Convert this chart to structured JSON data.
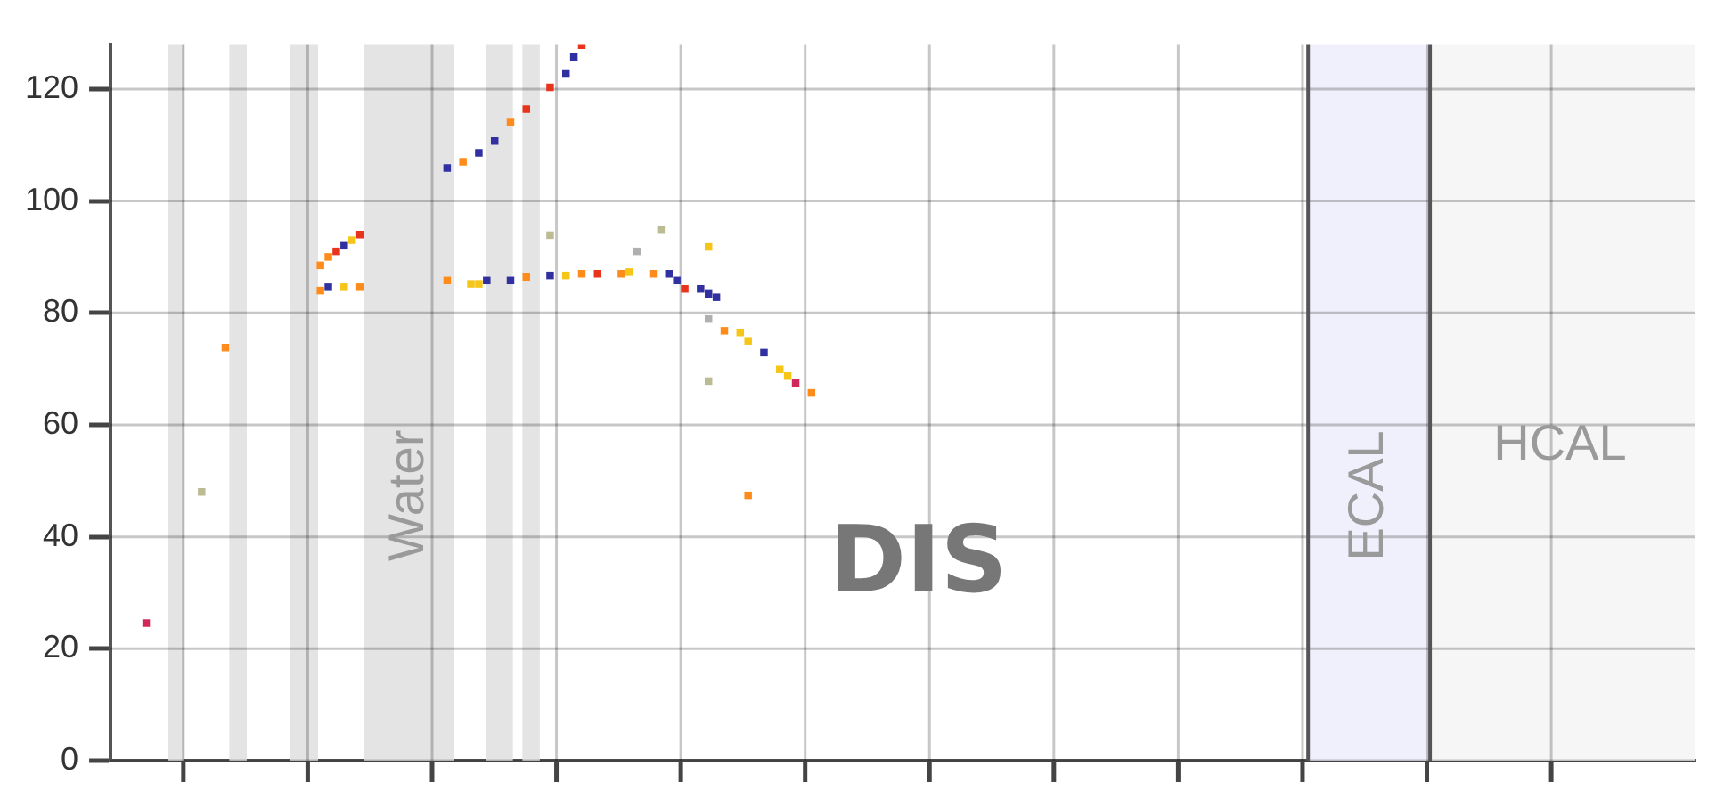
{
  "chart_data": {
    "type": "scatter",
    "ylim": [
      0,
      128
    ],
    "categories": [
      null,
      null,
      null,
      null,
      null,
      null,
      null,
      null,
      null,
      null,
      null,
      null,
      null,
      null,
      null,
      null,
      null,
      null,
      null,
      null,
      null,
      null,
      null,
      null,
      null,
      null,
      null,
      null,
      null,
      null,
      null,
      null,
      null,
      null,
      null,
      null,
      null,
      null,
      null,
      null,
      null,
      null,
      null,
      null,
      null,
      null,
      null,
      null,
      null,
      null,
      null,
      null,
      null,
      null,
      null,
      null,
      null,
      null,
      null,
      null,
      null,
      null,
      null,
      null,
      null,
      null,
      null,
      null,
      null,
      null,
      null,
      null,
      null,
      null,
      null,
      null,
      null,
      null,
      null,
      null,
      null,
      null,
      null,
      null,
      null,
      null,
      null,
      null,
      null,
      null,
      null,
      null,
      null,
      null,
      null,
      null,
      null,
      null,
      null,
      null,
      null,
      null,
      null,
      null,
      null,
      null,
      null,
      null,
      null,
      null,
      null,
      null,
      null,
      null,
      null,
      null,
      null,
      null,
      null,
      null,
      null,
      null,
      null,
      null,
      null,
      null,
      null,
      null,
      null,
      null,
      null,
      null,
      null,
      null,
      null,
      null,
      null,
      null,
      null,
      null,
      null,
      null,
      null,
      null,
      null,
      null,
      null,
      null,
      null,
      null,
      null,
      null,
      null,
      null,
      null,
      null,
      null,
      null,
      null,
      null,
      null,
      null,
      null,
      null,
      null,
      null,
      null,
      null,
      null,
      null,
      null,
      null,
      null,
      null,
      null,
      null,
      null,
      null,
      null,
      null,
      null,
      null,
      null,
      null,
      null,
      null,
      null,
      null,
      null,
      null,
      null,
      null,
      null,
      null,
      null,
      null,
      null,
      null,
      null,
      null
    ],
    "yticks": [
      0,
      20,
      40,
      60,
      80,
      100,
      120
    ],
    "tick_labels": "y",
    "grid": true,
    "marker": "square",
    "series": [
      {
        "color": "#3030a0",
        "values": [
          null,
          null,
          null,
          null,
          null,
          null,
          null,
          null,
          null,
          null,
          null,
          null,
          null,
          null,
          null,
          null,
          null,
          null,
          null,
          null,
          null,
          null,
          null,
          null,
          null,
          null,
          null,
          84.6,
          null,
          92,
          null,
          null,
          null,
          null,
          null,
          null,
          null,
          null,
          null,
          null,
          null,
          null,
          105.9,
          null,
          null,
          null,
          108.6,
          85.8,
          110.7,
          null,
          85.8,
          null,
          null,
          null,
          null,
          86.7,
          null,
          122.7,
          125.7,
          null,
          null,
          null,
          null,
          null,
          null,
          null,
          null,
          null,
          null,
          null,
          87,
          85.8,
          null,
          null,
          84.3,
          83.4,
          82.8,
          null,
          null,
          null,
          null,
          null,
          72.9,
          null,
          null,
          null,
          null,
          null,
          null,
          null,
          null,
          null,
          null,
          null,
          null,
          null,
          null,
          null,
          null,
          null,
          null,
          null,
          null,
          null,
          null,
          null,
          null,
          null,
          null,
          null,
          null,
          null,
          null,
          null,
          null,
          null,
          null,
          null,
          null,
          null,
          null,
          null,
          null,
          null,
          null,
          null,
          null,
          null,
          null,
          null,
          null,
          null,
          null,
          null,
          null,
          null,
          null,
          null,
          null,
          null,
          null,
          null,
          null,
          null,
          null,
          null,
          null,
          null,
          null,
          null,
          null,
          null,
          null,
          null,
          null,
          null,
          null,
          null,
          null,
          null,
          null,
          null,
          null,
          null,
          null,
          null,
          null,
          null,
          null,
          null,
          null,
          null,
          null,
          null,
          null,
          null,
          null,
          null,
          null,
          null,
          null,
          null,
          null,
          null,
          null,
          null,
          null,
          null,
          null,
          null,
          null,
          null,
          null,
          null,
          null,
          null,
          null,
          null,
          null,
          null
        ]
      },
      {
        "color": "#ff8c1a",
        "values": [
          null,
          null,
          null,
          null,
          null,
          null,
          null,
          null,
          null,
          null,
          null,
          null,
          null,
          null,
          73.8,
          null,
          null,
          null,
          null,
          null,
          null,
          null,
          null,
          null,
          null,
          null,
          88.5,
          90,
          null,
          null,
          null,
          84.6,
          null,
          null,
          null,
          null,
          null,
          null,
          null,
          null,
          null,
          null,
          85.8,
          null,
          107,
          null,
          null,
          null,
          null,
          null,
          114,
          null,
          86.4,
          null,
          null,
          null,
          null,
          null,
          null,
          87,
          null,
          null,
          null,
          null,
          87,
          null,
          null,
          null,
          87,
          null,
          null,
          null,
          null,
          null,
          null,
          null,
          null,
          76.8,
          null,
          null,
          47.4,
          null,
          null,
          null,
          null,
          null,
          null,
          null,
          65.7,
          null,
          null,
          null,
          null,
          null,
          null,
          null,
          null,
          null,
          null,
          null,
          null,
          null,
          null,
          null,
          null,
          null,
          null,
          null,
          null,
          null,
          null,
          null,
          null,
          null,
          null,
          null,
          null,
          null,
          null,
          null,
          null,
          null,
          null,
          null,
          null,
          null,
          null,
          null,
          null,
          null,
          null,
          null,
          null,
          null,
          null,
          null,
          null,
          null,
          null,
          null,
          null,
          null,
          null,
          null,
          null,
          null,
          null,
          null,
          null,
          null,
          null,
          null,
          null,
          null,
          null,
          null,
          null,
          null,
          null,
          null,
          null,
          null,
          null,
          null,
          null,
          null,
          null,
          null,
          null,
          null,
          null,
          null,
          null,
          null,
          null,
          null,
          null,
          null,
          null,
          null,
          null,
          null,
          null,
          null,
          null,
          null,
          null,
          null,
          null,
          null,
          null,
          null,
          null,
          null,
          null,
          null,
          null,
          null,
          null,
          null
        ]
      },
      {
        "color": "#ff8c1a",
        "values": [
          null,
          null,
          null,
          null,
          null,
          null,
          null,
          null,
          null,
          null,
          null,
          null,
          null,
          null,
          null,
          null,
          null,
          null,
          null,
          null,
          null,
          null,
          null,
          null,
          null,
          null,
          84,
          null,
          null,
          null,
          null,
          null,
          null,
          null,
          null,
          null,
          null,
          null,
          null,
          null,
          null,
          null,
          null,
          null,
          null,
          null,
          null,
          null,
          null,
          null,
          null,
          null,
          null,
          null,
          null,
          null,
          null,
          null,
          null,
          null,
          null,
          null,
          null,
          null,
          null,
          null,
          null,
          null,
          null,
          null,
          null,
          null,
          null,
          null,
          null,
          null,
          null,
          null,
          null,
          null,
          null,
          null,
          null,
          null,
          null,
          null,
          null,
          null,
          null,
          null,
          null,
          null,
          null,
          null,
          null,
          null,
          null,
          null,
          null,
          null,
          null,
          null,
          null,
          null,
          null,
          null,
          null,
          null,
          null,
          null,
          null,
          null,
          null,
          null,
          null,
          null,
          null,
          null,
          null,
          null,
          null,
          null,
          null,
          null,
          null,
          null,
          null,
          null,
          null,
          null,
          null,
          null,
          null,
          null,
          null,
          null,
          null,
          null,
          null,
          null,
          null,
          null,
          null,
          null,
          null,
          null,
          null,
          null,
          null,
          null,
          null,
          null,
          null,
          null,
          null,
          null,
          null,
          null,
          null,
          null,
          null,
          null,
          null,
          null,
          null,
          null,
          null,
          null,
          null,
          null,
          null,
          null,
          null,
          null,
          null,
          null,
          null,
          null,
          null,
          null,
          null,
          null,
          null,
          null,
          null,
          null,
          null,
          null,
          null,
          null,
          null,
          null,
          null,
          null,
          null,
          null,
          null,
          null,
          null,
          null
        ]
      },
      {
        "color": "#e8341c",
        "values": [
          null,
          null,
          null,
          null,
          null,
          null,
          null,
          null,
          null,
          null,
          null,
          null,
          null,
          null,
          null,
          null,
          null,
          null,
          null,
          null,
          null,
          null,
          null,
          null,
          null,
          null,
          null,
          null,
          91,
          null,
          null,
          94,
          null,
          null,
          null,
          null,
          null,
          null,
          null,
          null,
          null,
          null,
          null,
          null,
          null,
          null,
          null,
          null,
          null,
          null,
          null,
          null,
          116.4,
          null,
          null,
          120.3,
          null,
          null,
          null,
          127.8,
          null,
          87,
          null,
          null,
          null,
          null,
          null,
          null,
          null,
          null,
          null,
          null,
          84.3,
          null,
          null,
          null,
          null,
          null,
          null,
          null,
          null,
          null,
          null,
          null,
          null,
          null,
          null,
          null,
          null,
          null,
          null,
          null,
          null,
          null,
          null,
          null,
          null,
          null,
          null,
          null,
          null,
          null,
          null,
          null,
          null,
          null,
          null,
          null,
          null,
          null,
          null,
          null,
          null,
          null,
          null,
          null,
          null,
          null,
          null,
          null,
          null,
          null,
          null,
          null,
          null,
          null,
          null,
          null,
          null,
          null,
          null,
          null,
          null,
          null,
          null,
          null,
          null,
          null,
          null,
          null,
          null,
          null,
          null,
          null,
          null,
          null,
          null,
          null,
          null,
          null,
          null,
          null,
          null,
          null,
          null,
          null,
          null,
          null,
          null,
          null,
          null,
          null,
          null,
          null,
          null,
          null,
          null,
          null,
          null,
          null,
          null,
          null,
          null,
          null,
          null,
          null,
          null,
          null,
          null,
          null,
          null,
          null,
          null,
          null,
          null,
          null,
          null,
          null,
          null,
          null,
          null,
          null,
          null,
          null,
          null,
          null,
          null,
          null,
          null,
          null
        ]
      },
      {
        "color": "#f5c518",
        "values": [
          null,
          null,
          null,
          null,
          null,
          null,
          null,
          null,
          null,
          null,
          null,
          null,
          null,
          null,
          null,
          null,
          null,
          null,
          null,
          null,
          null,
          null,
          null,
          null,
          null,
          null,
          null,
          null,
          null,
          84.6,
          93,
          null,
          null,
          null,
          null,
          null,
          null,
          null,
          null,
          null,
          null,
          null,
          null,
          null,
          null,
          85.2,
          85.2,
          null,
          null,
          null,
          null,
          null,
          null,
          null,
          null,
          null,
          null,
          86.7,
          null,
          null,
          null,
          null,
          null,
          null,
          null,
          87.3,
          null,
          null,
          null,
          null,
          null,
          null,
          null,
          null,
          null,
          91.8,
          null,
          null,
          null,
          76.5,
          75,
          null,
          null,
          null,
          69.9,
          68.7,
          null,
          null,
          null,
          null,
          null,
          null,
          null,
          null,
          null,
          null,
          null,
          null,
          null,
          null,
          null,
          null,
          null,
          null,
          null,
          null,
          null,
          null,
          null,
          null,
          null,
          null,
          null,
          null,
          null,
          null,
          null,
          null,
          null,
          null,
          null,
          null,
          null,
          null,
          null,
          null,
          null,
          null,
          null,
          null,
          null,
          null,
          null,
          null,
          null,
          null,
          null,
          null,
          null,
          null,
          null,
          null,
          null,
          null,
          null,
          null,
          null,
          null,
          null,
          null,
          null,
          null,
          null,
          null,
          null,
          null,
          null,
          null,
          null,
          null,
          null,
          null,
          null,
          null,
          null,
          null,
          null,
          null,
          null,
          null,
          null,
          null,
          null,
          null,
          null,
          null,
          null,
          null,
          null,
          null,
          null,
          null,
          null,
          null,
          null,
          null,
          null,
          null,
          null,
          null,
          null,
          null,
          null,
          null,
          null,
          null,
          null,
          null,
          null,
          null
        ]
      },
      {
        "color": "#bcbc94",
        "values": [
          null,
          null,
          null,
          null,
          null,
          null,
          null,
          null,
          null,
          null,
          null,
          48,
          null,
          null,
          null,
          null,
          null,
          null,
          null,
          null,
          null,
          null,
          null,
          null,
          null,
          null,
          null,
          null,
          null,
          null,
          null,
          null,
          null,
          null,
          null,
          null,
          null,
          null,
          null,
          null,
          null,
          null,
          null,
          null,
          null,
          null,
          null,
          null,
          null,
          null,
          null,
          null,
          null,
          null,
          null,
          93.9,
          null,
          null,
          null,
          null,
          null,
          null,
          null,
          null,
          null,
          null,
          null,
          null,
          null,
          94.8,
          null,
          null,
          null,
          null,
          null,
          67.8,
          null,
          null,
          null,
          null,
          null,
          null,
          null,
          null,
          null,
          null,
          null,
          null,
          null,
          null,
          null,
          null,
          null,
          null,
          null,
          null,
          null,
          null,
          null,
          null,
          null,
          null,
          null,
          null,
          null,
          null,
          null,
          null,
          null,
          null,
          null,
          null,
          null,
          null,
          null,
          null,
          null,
          null,
          null,
          null,
          null,
          null,
          null,
          null,
          null,
          null,
          null,
          null,
          null,
          null,
          null,
          null,
          null,
          null,
          null,
          null,
          null,
          null,
          null,
          null,
          null,
          null,
          null,
          null,
          null,
          null,
          null,
          null,
          null,
          null,
          null,
          null,
          null,
          null,
          null,
          null,
          null,
          null,
          null,
          null,
          null,
          null,
          null,
          null,
          null,
          null,
          null,
          null,
          null,
          null,
          null,
          null,
          null,
          null,
          null,
          null,
          null,
          null,
          null,
          null,
          null,
          null,
          null,
          null,
          null,
          null,
          null,
          null,
          null,
          null,
          null,
          null,
          null,
          null,
          null,
          null,
          null,
          null,
          null,
          null
        ]
      },
      {
        "color": "#b0b0b0",
        "values": [
          null,
          null,
          null,
          null,
          null,
          null,
          null,
          null,
          null,
          null,
          null,
          null,
          null,
          null,
          null,
          null,
          null,
          null,
          null,
          null,
          null,
          null,
          null,
          null,
          null,
          null,
          null,
          null,
          null,
          null,
          null,
          null,
          null,
          null,
          null,
          null,
          null,
          null,
          null,
          null,
          null,
          null,
          null,
          null,
          null,
          null,
          null,
          null,
          null,
          null,
          null,
          null,
          null,
          null,
          null,
          null,
          null,
          null,
          null,
          null,
          null,
          null,
          null,
          null,
          null,
          null,
          91,
          null,
          null,
          null,
          null,
          null,
          null,
          null,
          null,
          78.9,
          null,
          null,
          null,
          null,
          null,
          null,
          null,
          null,
          null,
          null,
          null,
          null,
          null,
          null,
          null,
          null,
          null,
          null,
          null,
          null,
          null,
          null,
          null,
          null,
          null,
          null,
          null,
          null,
          null,
          null,
          null,
          null,
          null,
          null,
          null,
          null,
          null,
          null,
          null,
          null,
          null,
          null,
          null,
          null,
          null,
          null,
          null,
          null,
          null,
          null,
          null,
          null,
          null,
          null,
          null,
          null,
          null,
          null,
          null,
          null,
          null,
          null,
          null,
          null,
          null,
          null,
          null,
          null,
          null,
          null,
          null,
          null,
          null,
          null,
          null,
          null,
          null,
          null,
          null,
          null,
          null,
          null,
          null,
          null,
          null,
          null,
          null,
          null,
          null,
          null,
          null,
          null,
          null,
          null,
          null,
          null,
          null,
          null,
          null,
          null,
          null,
          null,
          null,
          null,
          null,
          null,
          null,
          null,
          null,
          null,
          null,
          null,
          null,
          null,
          null,
          null,
          null,
          null,
          null,
          null,
          null,
          null,
          null,
          null
        ]
      },
      {
        "color": "#d0285a",
        "values": [
          null,
          null,
          null,
          null,
          24.6,
          null,
          null,
          null,
          null,
          null,
          null,
          null,
          null,
          null,
          null,
          null,
          null,
          null,
          null,
          null,
          null,
          null,
          null,
          null,
          null,
          null,
          null,
          null,
          null,
          null,
          null,
          null,
          null,
          null,
          null,
          null,
          null,
          null,
          null,
          null,
          null,
          null,
          null,
          null,
          null,
          null,
          null,
          null,
          null,
          null,
          null,
          null,
          null,
          null,
          null,
          null,
          null,
          null,
          null,
          null,
          null,
          null,
          null,
          null,
          null,
          null,
          null,
          null,
          null,
          null,
          null,
          null,
          null,
          null,
          null,
          null,
          null,
          null,
          null,
          null,
          null,
          null,
          null,
          null,
          null,
          null,
          67.5,
          null,
          null,
          null,
          null,
          null,
          null,
          null,
          null,
          null,
          null,
          null,
          null,
          null,
          null,
          null,
          null,
          null,
          null,
          null,
          null,
          null,
          null,
          null,
          null,
          null,
          null,
          null,
          null,
          null,
          null,
          null,
          null,
          null,
          null,
          null,
          null,
          null,
          null,
          null,
          null,
          null,
          null,
          null,
          null,
          null,
          null,
          null,
          null,
          null,
          null,
          null,
          null,
          null,
          null,
          null,
          null,
          null,
          null,
          null,
          null,
          null,
          null,
          null,
          null,
          null,
          null,
          null,
          null,
          null,
          null,
          null,
          null,
          null,
          null,
          null,
          null,
          null,
          null,
          null,
          null,
          null,
          null,
          null,
          null,
          null,
          null,
          null,
          null,
          null,
          null,
          null,
          null,
          null,
          null,
          null,
          null,
          null,
          null,
          null,
          null,
          null,
          null,
          null,
          null,
          null,
          null,
          null,
          null,
          null,
          null,
          null,
          null,
          null
        ]
      }
    ],
    "annotations": [
      "Water",
      "ECAL",
      "HCAL",
      "DIS"
    ]
  }
}
